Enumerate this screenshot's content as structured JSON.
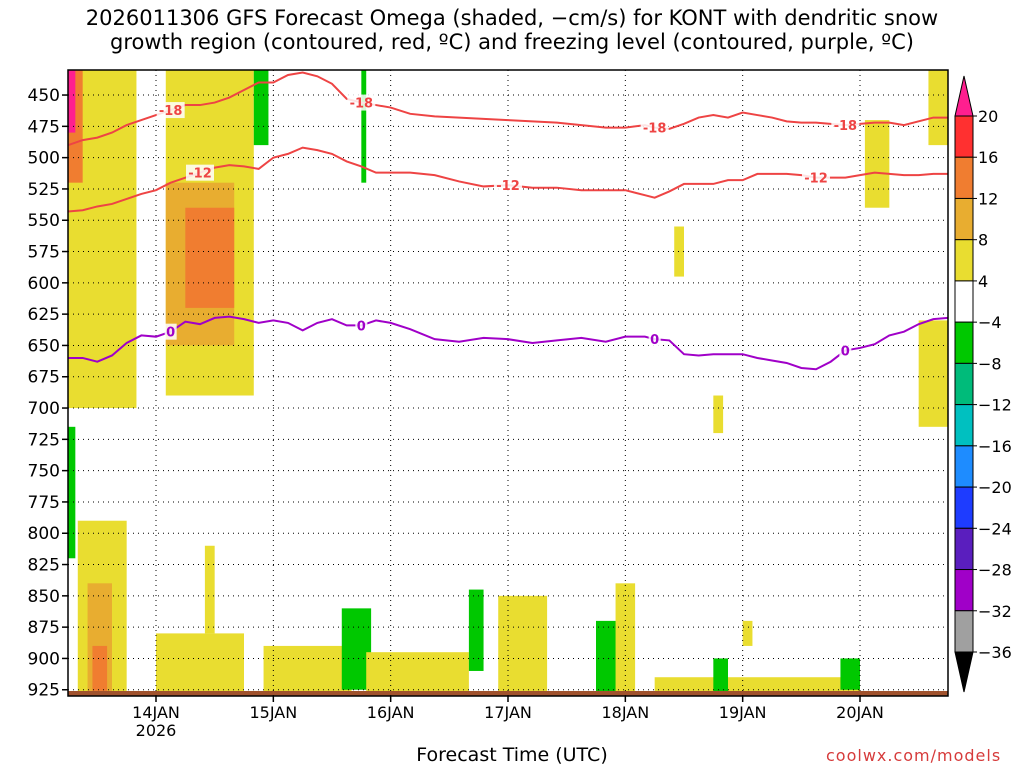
{
  "title": "2026011306 GFS Forecast Omega (shaded, −cm/s) for KONT with dendritic snow\ngrowth region (contoured, red, ºC) and freezing level (contoured, purple, ºC)",
  "credit": "coolwx.com/models",
  "chart_data": {
    "type": "heatmap",
    "title": "2026011306 GFS Forecast Omega (shaded, −cm/s) for KONT with dendritic snow growth region (contoured, red, ºC) and freezing level (contoured, purple, ºC)",
    "xlabel": "Forecast Time (UTC)",
    "ylabel": "",
    "x_ticks": [
      "14JAN\n2026",
      "15JAN",
      "16JAN",
      "17JAN",
      "18JAN",
      "19JAN",
      "20JAN"
    ],
    "x_tick_hours": [
      18,
      42,
      66,
      90,
      114,
      138,
      162
    ],
    "x_range_hours": [
      0,
      180
    ],
    "y_ticks": [
      450,
      475,
      500,
      525,
      550,
      575,
      600,
      625,
      650,
      675,
      700,
      725,
      750,
      775,
      800,
      825,
      850,
      875,
      900,
      925
    ],
    "y_range": [
      430,
      930
    ],
    "grid": true,
    "colorbar": {
      "labels": [
        "20",
        "16",
        "12",
        "8",
        "4",
        "−4",
        "−8",
        "−12",
        "−16",
        "−20",
        "−24",
        "−28",
        "−32",
        "−36"
      ],
      "colors": [
        "#ff1f8f",
        "#ff3030",
        "#f07d30",
        "#e8ad30",
        "#e9dd30",
        "#ffffff",
        "#00c800",
        "#00bb7a",
        "#00c0c0",
        "#1e8cff",
        "#1e3cff",
        "#5a1ebe",
        "#a000c8",
        "#a0a0a0"
      ]
    },
    "series": [
      {
        "name": "-18",
        "color": "#ee4444",
        "labels": [
          "-18",
          "-18",
          "-18",
          "-18"
        ],
        "x": [
          0,
          3,
          6,
          9,
          12,
          15,
          18,
          21,
          24,
          27,
          30,
          33,
          36,
          39,
          42,
          45,
          48,
          51,
          54,
          57,
          60,
          63,
          66,
          70,
          75,
          80,
          85,
          90,
          95,
          100,
          105,
          110,
          114,
          118,
          120,
          123,
          126,
          129,
          132,
          135,
          138,
          141,
          144,
          147,
          150,
          153,
          156,
          159,
          162,
          165,
          168,
          171,
          174,
          177,
          180
        ],
        "y": [
          490,
          486,
          484,
          480,
          474,
          470,
          466,
          462,
          458,
          458,
          456,
          452,
          446,
          440,
          440,
          434,
          432,
          435,
          441,
          453,
          456,
          458,
          460,
          465,
          467,
          468,
          469,
          470,
          471,
          472,
          474,
          476,
          476,
          474,
          476,
          477,
          473,
          468,
          466,
          468,
          464,
          466,
          468,
          471,
          472,
          472,
          473,
          474,
          473,
          472,
          472,
          474,
          471,
          468,
          468
        ]
      },
      {
        "name": "-12",
        "color": "#ee4444",
        "labels": [
          "-12",
          "-12",
          "-12"
        ],
        "x": [
          0,
          3,
          6,
          9,
          12,
          15,
          18,
          21,
          24,
          27,
          30,
          33,
          36,
          39,
          42,
          45,
          48,
          51,
          54,
          57,
          60,
          63,
          66,
          70,
          75,
          80,
          85,
          90,
          95,
          100,
          105,
          110,
          114,
          118,
          120,
          123,
          126,
          129,
          132,
          135,
          138,
          141,
          144,
          147,
          150,
          153,
          156,
          159,
          162,
          165,
          168,
          171,
          174,
          177,
          180
        ],
        "y": [
          543,
          542,
          539,
          537,
          533,
          529,
          526,
          520,
          516,
          512,
          508,
          506,
          507,
          509,
          500,
          497,
          492,
          494,
          497,
          503,
          507,
          512,
          512,
          512,
          514,
          519,
          523,
          522,
          524,
          524,
          526,
          526,
          526,
          530,
          532,
          527,
          521,
          521,
          521,
          518,
          518,
          513,
          513,
          513,
          514,
          516,
          516,
          516,
          514,
          512,
          513,
          514,
          514,
          513,
          513
        ]
      },
      {
        "name": "0",
        "color": "#a000c8",
        "labels": [
          "0",
          "0",
          "0",
          "0"
        ],
        "x": [
          0,
          3,
          6,
          9,
          12,
          15,
          18,
          21,
          24,
          27,
          30,
          33,
          36,
          39,
          42,
          45,
          48,
          51,
          54,
          57,
          60,
          63,
          66,
          70,
          75,
          80,
          85,
          90,
          95,
          100,
          105,
          110,
          114,
          118,
          120,
          123,
          126,
          129,
          132,
          135,
          138,
          141,
          144,
          147,
          150,
          153,
          156,
          159,
          162,
          165,
          168,
          171,
          174,
          177,
          180
        ],
        "y": [
          660,
          660,
          663,
          658,
          648,
          642,
          643,
          639,
          631,
          633,
          628,
          627,
          629,
          632,
          630,
          632,
          638,
          632,
          629,
          634,
          634,
          630,
          632,
          637,
          645,
          647,
          644,
          645,
          648,
          646,
          644,
          647,
          643,
          643,
          645,
          646,
          657,
          658,
          657,
          657,
          657,
          660,
          662,
          664,
          668,
          669,
          663,
          654,
          652,
          649,
          642,
          639,
          633,
          629,
          628
        ]
      }
    ],
    "omega_regions": [
      {
        "x0": 0,
        "x1": 14,
        "p0": 430,
        "p1": 700,
        "value": 6
      },
      {
        "x0": 0,
        "x1": 3,
        "p0": 430,
        "p1": 520,
        "value": 14
      },
      {
        "x0": 0,
        "x1": 1.5,
        "p0": 430,
        "p1": 480,
        "value": 22
      },
      {
        "x0": 20,
        "x1": 38,
        "p0": 430,
        "p1": 690,
        "value": 6
      },
      {
        "x0": 20,
        "x1": 34,
        "p0": 520,
        "p1": 650,
        "value": 10
      },
      {
        "x0": 24,
        "x1": 34,
        "p0": 540,
        "p1": 620,
        "value": 14
      },
      {
        "x0": 38,
        "x1": 41,
        "p0": 430,
        "p1": 490,
        "value": -6
      },
      {
        "x0": 60,
        "x1": 61,
        "p0": 430,
        "p1": 520,
        "value": -6
      },
      {
        "x0": 176,
        "x1": 180,
        "p0": 430,
        "p1": 490,
        "value": 6
      },
      {
        "x0": 163,
        "x1": 168,
        "p0": 470,
        "p1": 540,
        "value": 6
      },
      {
        "x0": 124,
        "x1": 126,
        "p0": 555,
        "p1": 595,
        "value": 6
      },
      {
        "x0": 174,
        "x1": 180,
        "p0": 630,
        "p1": 715,
        "value": 6
      },
      {
        "x0": 132,
        "x1": 134,
        "p0": 690,
        "p1": 720,
        "value": 6
      },
      {
        "x0": 0,
        "x1": 1.5,
        "p0": 715,
        "p1": 820,
        "value": -6
      },
      {
        "x0": 2,
        "x1": 12,
        "p0": 790,
        "p1": 930,
        "value": 6
      },
      {
        "x0": 4,
        "x1": 9,
        "p0": 840,
        "p1": 930,
        "value": 10
      },
      {
        "x0": 5,
        "x1": 8,
        "p0": 890,
        "p1": 930,
        "value": 14
      },
      {
        "x0": 18,
        "x1": 36,
        "p0": 880,
        "p1": 930,
        "value": 6
      },
      {
        "x0": 28,
        "x1": 30,
        "p0": 810,
        "p1": 880,
        "value": 6
      },
      {
        "x0": 40,
        "x1": 58,
        "p0": 890,
        "p1": 930,
        "value": 6
      },
      {
        "x0": 56,
        "x1": 62,
        "p0": 860,
        "p1": 925,
        "value": -6
      },
      {
        "x0": 61,
        "x1": 82,
        "p0": 895,
        "p1": 930,
        "value": 6
      },
      {
        "x0": 88,
        "x1": 98,
        "p0": 850,
        "p1": 930,
        "value": 6
      },
      {
        "x0": 82,
        "x1": 85,
        "p0": 845,
        "p1": 910,
        "value": -6
      },
      {
        "x0": 108,
        "x1": 113,
        "p0": 870,
        "p1": 930,
        "value": -6
      },
      {
        "x0": 112,
        "x1": 116,
        "p0": 840,
        "p1": 930,
        "value": 6
      },
      {
        "x0": 120,
        "x1": 162,
        "p0": 915,
        "p1": 930,
        "value": 6
      },
      {
        "x0": 132,
        "x1": 135,
        "p0": 900,
        "p1": 930,
        "value": -6
      },
      {
        "x0": 158,
        "x1": 162,
        "p0": 900,
        "p1": 925,
        "value": -6
      },
      {
        "x0": 138,
        "x1": 140,
        "p0": 870,
        "p1": 890,
        "value": 6
      }
    ]
  }
}
